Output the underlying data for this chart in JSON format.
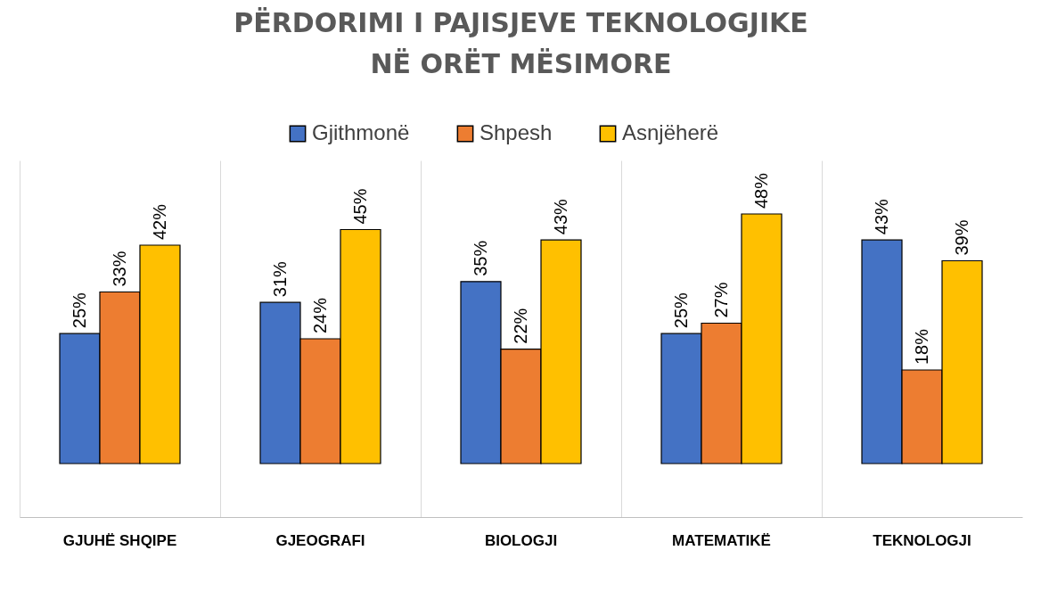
{
  "chart_data": {
    "type": "bar",
    "title": "PËRDORIMI I PAJISJEVE TEKNOLOGJIKE NË ORËT MËSIMORE",
    "categories": [
      "GJUHË SHQIPE",
      "GJEOGRAFI",
      "BIOLOGJI",
      "MATEMATIKË",
      "TEKNOLOGJI"
    ],
    "series": [
      {
        "name": "Gjithmonë",
        "color": "#4472c4",
        "values": [
          25,
          31,
          35,
          25,
          43
        ],
        "value_labels": [
          "25%",
          "31%",
          "35%",
          "25%",
          "43%"
        ]
      },
      {
        "name": "Shpesh",
        "color": "#ed7d31",
        "values": [
          33,
          24,
          22,
          27,
          18
        ],
        "value_labels": [
          "33%",
          "24%",
          "22%",
          "27%",
          "18%"
        ]
      },
      {
        "name": "Asnjëherë",
        "color": "#ffc000",
        "values": [
          42,
          45,
          43,
          48,
          39
        ],
        "value_labels": [
          "42%",
          "45%",
          "43%",
          "48%",
          "39%"
        ]
      }
    ],
    "legend": "top",
    "grid": "x"
  }
}
